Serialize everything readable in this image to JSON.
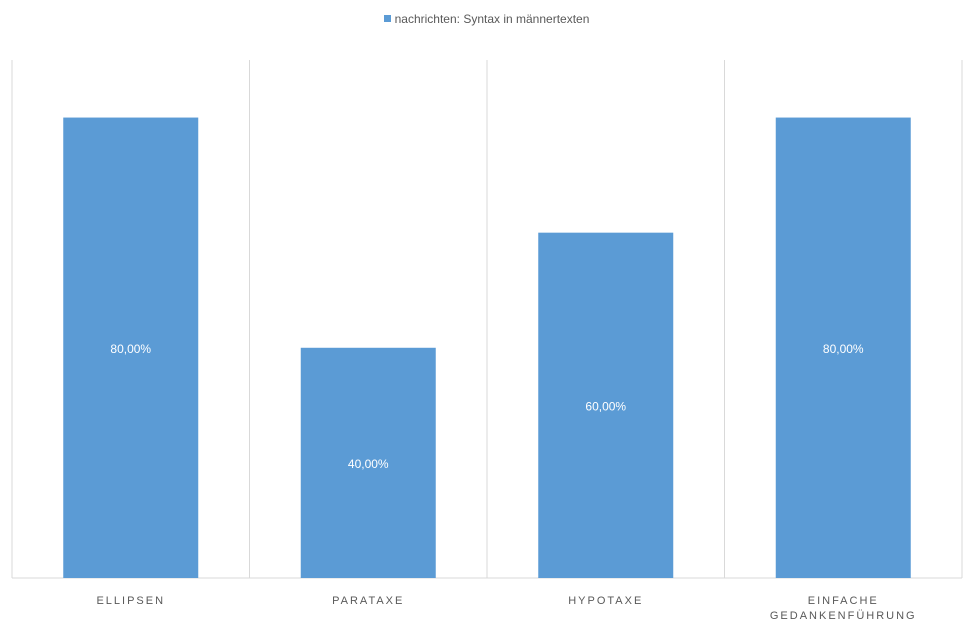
{
  "chart_data": {
    "type": "bar",
    "categories": [
      "ELLIPSEN",
      "PARATAXE",
      "HYPOTAXE",
      "EINFACHE GEDANKENFÜHRUNG"
    ],
    "category_lines": [
      [
        "ELLIPSEN"
      ],
      [
        "PARATAXE"
      ],
      [
        "HYPOTAXE"
      ],
      [
        "EINFACHE",
        "GEDANKENFÜHRUNG"
      ]
    ],
    "series": [
      {
        "name": "nachrichten: Syntax in männertexten",
        "values": [
          80,
          40,
          60,
          80
        ],
        "labels": [
          "80,00%",
          "40,00%",
          "60,00%",
          "80,00%"
        ]
      }
    ],
    "ylim": [
      0,
      90
    ],
    "grid": "vertical separators",
    "legend": "top-center",
    "colors": {
      "bar": "#5b9bd5",
      "grid": "#d9d9d9",
      "axis_text": "#595959",
      "data_label": "#ffffff"
    }
  }
}
